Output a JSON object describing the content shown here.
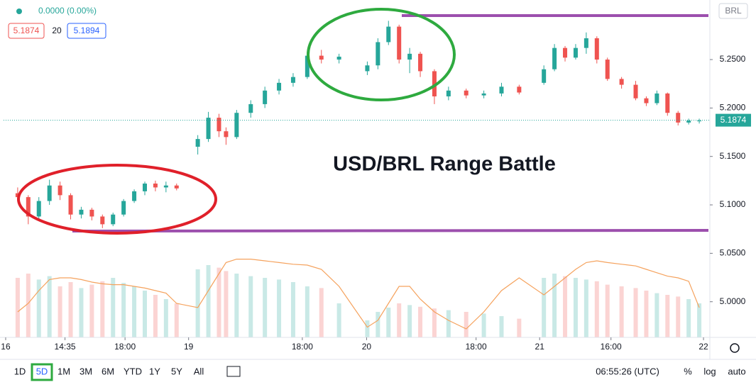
{
  "header": {
    "change": "0.0000 (0.00%)",
    "bid": "5.1874",
    "spread": "20",
    "ask": "5.1894",
    "currency": "BRL"
  },
  "annotation": "USD/BRL Range Battle",
  "chart_data": {
    "type": "candlestick",
    "x": [
      2,
      3.5,
      5,
      6.5,
      8,
      9.5,
      11,
      12.5,
      14,
      15.5,
      17,
      18.5,
      20,
      21.5,
      23,
      24.5,
      27.5,
      29,
      30.5,
      31.5,
      33,
      35,
      37,
      39,
      41,
      43,
      45,
      47.5,
      51.5,
      53,
      54.5,
      56,
      57.5,
      59,
      61,
      63,
      65.5,
      68,
      70.5,
      73,
      76.5,
      78,
      79.5,
      81,
      82.5,
      84,
      85.5,
      87.5,
      89.5,
      91,
      92.5,
      94,
      95.5,
      97,
      98.5
    ],
    "open": [
      5.112,
      5.108,
      5.088,
      5.104,
      5.12,
      5.11,
      5.09,
      5.095,
      5.088,
      5.08,
      5.09,
      5.104,
      5.114,
      5.122,
      5.118,
      5.12,
      5.16,
      5.168,
      5.19,
      5.176,
      5.17,
      5.195,
      5.204,
      5.218,
      5.226,
      5.232,
      5.254,
      5.25,
      5.238,
      5.244,
      5.268,
      5.284,
      5.25,
      5.256,
      5.238,
      5.212,
      5.218,
      5.213,
      5.215,
      5.222,
      5.226,
      5.24,
      5.262,
      5.252,
      5.262,
      5.272,
      5.25,
      5.23,
      5.224,
      5.21,
      5.205,
      5.215,
      5.195,
      5.185,
      5.187
    ],
    "high": [
      5.118,
      5.11,
      5.108,
      5.126,
      5.124,
      5.112,
      5.098,
      5.097,
      5.09,
      5.092,
      5.106,
      5.116,
      5.124,
      5.125,
      5.124,
      5.122,
      5.172,
      5.196,
      5.194,
      5.18,
      5.198,
      5.208,
      5.222,
      5.23,
      5.236,
      5.258,
      5.26,
      5.256,
      5.248,
      5.272,
      5.29,
      5.286,
      5.262,
      5.258,
      5.24,
      5.222,
      5.22,
      5.218,
      5.226,
      5.224,
      5.244,
      5.266,
      5.264,
      5.266,
      5.278,
      5.274,
      5.252,
      5.232,
      5.228,
      5.212,
      5.218,
      5.216,
      5.197,
      5.189,
      5.189
    ],
    "low": [
      5.104,
      5.08,
      5.085,
      5.1,
      5.105,
      5.085,
      5.086,
      5.084,
      5.076,
      5.078,
      5.088,
      5.102,
      5.11,
      5.114,
      5.113,
      5.115,
      5.152,
      5.165,
      5.17,
      5.162,
      5.168,
      5.19,
      5.2,
      5.214,
      5.222,
      5.23,
      5.246,
      5.246,
      5.234,
      5.24,
      5.265,
      5.246,
      5.236,
      5.232,
      5.204,
      5.208,
      5.21,
      5.21,
      5.212,
      5.214,
      5.224,
      5.238,
      5.248,
      5.25,
      5.256,
      5.246,
      5.228,
      5.22,
      5.208,
      5.202,
      5.203,
      5.192,
      5.182,
      5.183,
      5.184
    ],
    "close": [
      5.108,
      5.088,
      5.104,
      5.12,
      5.11,
      5.09,
      5.095,
      5.088,
      5.08,
      5.09,
      5.104,
      5.114,
      5.122,
      5.118,
      5.12,
      5.117,
      5.168,
      5.19,
      5.176,
      5.17,
      5.195,
      5.204,
      5.218,
      5.226,
      5.232,
      5.254,
      5.25,
      5.253,
      5.244,
      5.268,
      5.284,
      5.25,
      5.256,
      5.238,
      5.212,
      5.218,
      5.213,
      5.215,
      5.222,
      5.216,
      5.24,
      5.262,
      5.252,
      5.262,
      5.272,
      5.25,
      5.23,
      5.224,
      5.21,
      5.205,
      5.215,
      5.195,
      5.185,
      5.187,
      5.187
    ],
    "volume": [
      70,
      75,
      68,
      72,
      60,
      65,
      58,
      62,
      66,
      70,
      64,
      60,
      55,
      50,
      45,
      40,
      80,
      85,
      82,
      78,
      75,
      72,
      70,
      68,
      65,
      60,
      58,
      40,
      20,
      30,
      35,
      40,
      38,
      36,
      34,
      32,
      30,
      28,
      25,
      22,
      70,
      75,
      72,
      70,
      68,
      66,
      62,
      60,
      58,
      55,
      52,
      50,
      48,
      45,
      40
    ],
    "volume_ma": [
      30,
      40,
      55,
      68,
      70,
      70,
      68,
      65,
      63,
      62,
      62,
      60,
      58,
      55,
      52,
      40,
      35,
      55,
      75,
      88,
      92,
      92,
      90,
      88,
      86,
      85,
      80,
      60,
      12,
      20,
      40,
      60,
      60,
      45,
      30,
      20,
      10,
      30,
      55,
      70,
      50,
      60,
      70,
      80,
      88,
      90,
      88,
      86,
      84,
      80,
      76,
      72,
      70,
      66,
      35
    ],
    "up_color": "#26a69a",
    "down_color": "#ef5350",
    "ma_color": "#f5a25d",
    "last_price": 5.1874,
    "last_color": "#26a69a",
    "xlim": [
      0,
      100
    ],
    "xticks": [
      {
        "value": 0.3,
        "label": "16"
      },
      {
        "value": 8.7,
        "label": "14:35"
      },
      {
        "value": 17.2,
        "label": "18:00"
      },
      {
        "value": 26.2,
        "label": "19"
      },
      {
        "value": 42.3,
        "label": "18:00"
      },
      {
        "value": 51.4,
        "label": "20"
      },
      {
        "value": 66.9,
        "label": "18:00"
      },
      {
        "value": 75.9,
        "label": "21"
      },
      {
        "value": 86.0,
        "label": "16:00"
      },
      {
        "value": 99.1,
        "label": "22"
      }
    ],
    "ylim": [
      4.9632,
      5.3115
    ],
    "yticks": [
      {
        "value": 5.0,
        "label": "5.0000"
      },
      {
        "value": 5.05,
        "label": "5.0500"
      },
      {
        "value": 5.1,
        "label": "5.1000"
      },
      {
        "value": 5.15,
        "label": "5.1500"
      },
      {
        "value": 5.2,
        "label": "5.2000"
      },
      {
        "value": 5.25,
        "label": "5.2500"
      }
    ]
  },
  "toolbar": {
    "ranges": [
      "1D",
      "5D",
      "1M",
      "3M",
      "6M",
      "YTD",
      "1Y",
      "5Y",
      "All"
    ],
    "time": "06:55:26 (UTC)",
    "percent": "%",
    "log": "log",
    "auto": "auto"
  }
}
